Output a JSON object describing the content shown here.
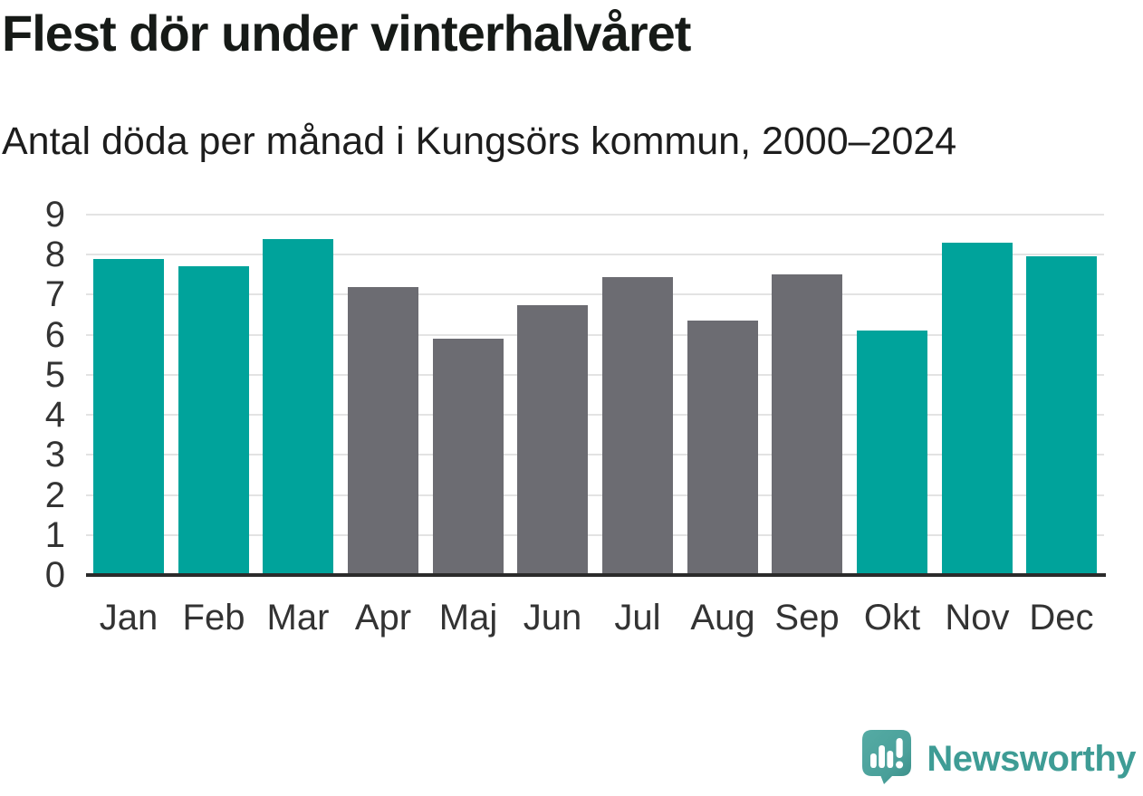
{
  "header": {
    "title": "Flest dör under vinterhalvåret",
    "subtitle": "Antal döda per månad i Kungsörs kommun, 2000–2024"
  },
  "footer": {
    "brand": "Newsworthy",
    "logo_icon": "newsworthy-speech-bubble-chart-icon"
  },
  "colors": {
    "winter": "#00a39b",
    "summer": "#6c6c72",
    "grid": "#e3e3e3",
    "axis": "#2b2b2b",
    "tick_text": "#333333",
    "title_text": "#161a17",
    "brand_teal": "#3e9c95"
  },
  "chart_data": {
    "type": "bar",
    "title": "Flest dör under vinterhalvåret",
    "subtitle": "Antal döda per månad i Kungsörs kommun, 2000–2024",
    "categories": [
      "Jan",
      "Feb",
      "Mar",
      "Apr",
      "Maj",
      "Jun",
      "Jul",
      "Aug",
      "Sep",
      "Okt",
      "Nov",
      "Dec"
    ],
    "values": [
      7.9,
      7.7,
      8.4,
      7.2,
      5.9,
      6.75,
      7.45,
      6.35,
      7.5,
      6.1,
      8.3,
      7.95
    ],
    "bar_groups": [
      "winter",
      "winter",
      "winter",
      "summer",
      "summer",
      "summer",
      "summer",
      "summer",
      "summer",
      "winter",
      "winter",
      "winter"
    ],
    "xlabel": "",
    "ylabel": "",
    "ylim": [
      0,
      9
    ],
    "yticks": [
      0,
      1,
      2,
      3,
      4,
      5,
      6,
      7,
      8,
      9
    ],
    "grid": true,
    "legend_position": "none"
  }
}
